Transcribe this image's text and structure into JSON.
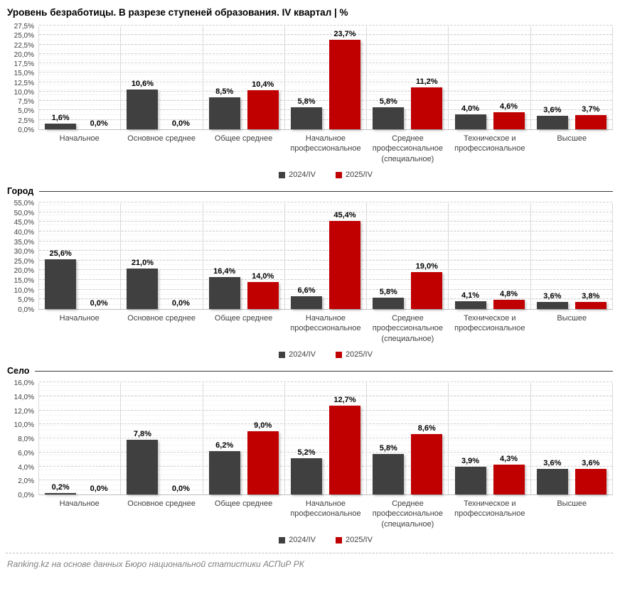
{
  "page": {
    "title": "Уровень безработицы. В разрезе ступеней образования. IV квартал | %",
    "footer": "Ranking.kz на основе данных Бюро национальной статистики АСПиР РК"
  },
  "colors": {
    "series_2024": "#404040",
    "series_2025": "#C00000",
    "grid": "#CFCFCF",
    "section_rule": "#3a3a3a"
  },
  "chart_data": [
    {
      "type": "bar",
      "section": "",
      "categories": [
        "Начальное",
        "Основное среднее",
        "Общее среднее",
        "Начальное профессиональное",
        "Среднее профессиональное (специальное)",
        "Техническое и профессиональное",
        "Высшее"
      ],
      "series": [
        {
          "name": "2024/IV",
          "color": "#404040",
          "values": [
            1.6,
            10.6,
            8.5,
            5.8,
            5.8,
            4.0,
            3.6
          ]
        },
        {
          "name": "2025/IV",
          "color": "#C00000",
          "values": [
            0.0,
            0.0,
            10.4,
            23.7,
            11.2,
            4.6,
            3.7
          ]
        }
      ],
      "value_labels": [
        "1,6%",
        "0,0%",
        "10,6%",
        "0,0%",
        "8,5%",
        "10,4%",
        "5,8%",
        "23,7%",
        "5,8%",
        "11,2%",
        "4,0%",
        "4,6%",
        "3,6%",
        "3,7%"
      ],
      "ylim": [
        0,
        27.5
      ],
      "ytick_step": 2.5,
      "grid": true,
      "legend_position": "bottom-center"
    },
    {
      "type": "bar",
      "section": "Город",
      "categories": [
        "Начальное",
        "Основное среднее",
        "Общее среднее",
        "Начальное профессиональное",
        "Среднее профессиональное (специальное)",
        "Техническое и профессиональное",
        "Высшее"
      ],
      "series": [
        {
          "name": "2024/IV",
          "color": "#404040",
          "values": [
            25.6,
            21.0,
            16.4,
            6.6,
            5.8,
            4.1,
            3.6
          ]
        },
        {
          "name": "2025/IV",
          "color": "#C00000",
          "values": [
            0.0,
            0.0,
            14.0,
            45.4,
            19.0,
            4.8,
            3.8
          ]
        }
      ],
      "value_labels": [
        "25,6%",
        "0,0%",
        "21,0%",
        "0,0%",
        "16,4%",
        "14,0%",
        "6,6%",
        "45,4%",
        "5,8%",
        "19,0%",
        "4,1%",
        "4,8%",
        "3,6%",
        "3,8%"
      ],
      "ylim": [
        0,
        55
      ],
      "ytick_step": 5,
      "grid": true,
      "legend_position": "bottom-center"
    },
    {
      "type": "bar",
      "section": "Село",
      "categories": [
        "Начальное",
        "Основное среднее",
        "Общее среднее",
        "Начальное профессиональное",
        "Среднее профессиональное (специальное)",
        "Техническое и профессиональное",
        "Высшее"
      ],
      "series": [
        {
          "name": "2024/IV",
          "color": "#404040",
          "values": [
            0.2,
            7.8,
            6.2,
            5.2,
            5.8,
            3.9,
            3.6
          ]
        },
        {
          "name": "2025/IV",
          "color": "#C00000",
          "values": [
            0.0,
            0.0,
            9.0,
            12.7,
            8.6,
            4.3,
            3.6
          ]
        }
      ],
      "value_labels": [
        "0,2%",
        "0,0%",
        "7,8%",
        "0,0%",
        "6,2%",
        "9,0%",
        "5,2%",
        "12,7%",
        "5,8%",
        "8,6%",
        "3,9%",
        "4,3%",
        "3,6%",
        "3,6%"
      ],
      "ylim": [
        0,
        16
      ],
      "ytick_step": 2,
      "grid": true,
      "legend_position": "bottom-center"
    }
  ]
}
